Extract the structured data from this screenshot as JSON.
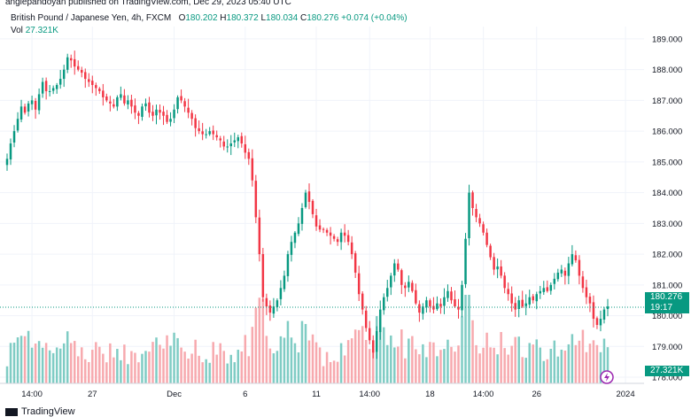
{
  "header": {
    "published": "anglepandoyan published on TradingView.com, Dec 29, 2023 05:40 UTC"
  },
  "legend": {
    "symbol": "British Pound / Japanese Yen, 4h, FXCM",
    "o_label": "O",
    "o_value": "180.202",
    "h_label": "H",
    "h_value": "180.372",
    "l_label": "L",
    "l_value": "180.034",
    "c_label": "C",
    "c_value": "180.276",
    "change": "+0.074 (+0.04%)",
    "vol_label": "Vol",
    "vol_value": "27.321K"
  },
  "price_tags": {
    "price": "180.276",
    "countdown": "19:17",
    "volume": "27.321K"
  },
  "footer": {
    "brand": "TradingView"
  },
  "colors": {
    "up": "#089981",
    "down": "#f23645",
    "vol_up": "#7fccc4",
    "vol_down": "#f7a9ae",
    "grid": "#f0f3fa"
  },
  "chart_data": {
    "type": "candlestick",
    "y_axis": {
      "ticks": [
        189,
        188,
        187,
        186,
        185,
        184,
        183,
        182,
        181,
        180,
        179,
        178
      ],
      "tick_labels": [
        "189.000",
        "188.000",
        "187.000",
        "186.000",
        "185.000",
        "184.000",
        "183.000",
        "182.000",
        "181.000",
        "180.000",
        "179.000",
        "178.000"
      ],
      "ylim": [
        177.8,
        189.4
      ]
    },
    "x_axis": {
      "tick_labels": [
        "14:00",
        "27",
        "Dec",
        "6",
        "11",
        "14:00",
        "18",
        "14:00",
        "26",
        "2024"
      ],
      "tick_bar_index": [
        7,
        24,
        47,
        67,
        87,
        102,
        119,
        134,
        149,
        174
      ]
    },
    "last_close": 180.276,
    "closes": [
      185.1,
      185.6,
      186.0,
      186.4,
      186.8,
      186.6,
      186.9,
      187.0,
      186.7,
      187.2,
      187.6,
      187.3,
      187.3,
      187.4,
      187.5,
      187.7,
      188.0,
      188.4,
      188.3,
      188.1,
      188.0,
      187.9,
      187.7,
      187.6,
      187.5,
      187.4,
      187.3,
      187.1,
      187.0,
      186.9,
      186.8,
      187.1,
      187.2,
      186.9,
      187.0,
      186.8,
      186.6,
      186.5,
      186.8,
      186.9,
      186.6,
      186.5,
      186.7,
      186.6,
      186.5,
      186.3,
      186.4,
      186.7,
      187.1,
      187.0,
      186.8,
      186.6,
      186.4,
      186.1,
      186.0,
      185.9,
      185.9,
      186.0,
      185.9,
      185.8,
      185.7,
      185.5,
      185.5,
      185.6,
      185.7,
      185.8,
      185.6,
      185.3,
      185.1,
      184.4,
      183.2,
      182.0,
      180.6,
      180.3,
      180.1,
      180.3,
      180.5,
      180.9,
      181.3,
      182.0,
      182.4,
      182.7,
      183.0,
      183.5,
      184.0,
      183.7,
      183.3,
      182.9,
      182.8,
      182.8,
      182.7,
      182.6,
      182.5,
      182.4,
      182.7,
      182.6,
      182.4,
      182.0,
      181.4,
      180.7,
      180.2,
      179.6,
      179.2,
      178.8,
      179.5,
      180.2,
      180.6,
      180.9,
      181.3,
      181.7,
      181.5,
      181.0,
      180.9,
      181.1,
      180.8,
      180.4,
      180.1,
      180.3,
      180.5,
      180.3,
      180.2,
      180.4,
      180.3,
      180.6,
      180.8,
      180.5,
      180.3,
      180.2,
      181.0,
      182.5,
      184.0,
      183.5,
      183.2,
      183.0,
      182.7,
      182.3,
      181.9,
      181.5,
      181.6,
      181.3,
      180.9,
      180.7,
      180.4,
      180.2,
      180.5,
      180.3,
      180.4,
      180.6,
      180.5,
      180.7,
      180.8,
      180.9,
      180.8,
      181.0,
      181.2,
      181.4,
      181.5,
      181.3,
      181.7,
      182.0,
      181.8,
      181.3,
      180.9,
      180.6,
      180.4,
      179.9,
      179.7,
      179.9,
      180.2,
      180.3
    ]
  }
}
